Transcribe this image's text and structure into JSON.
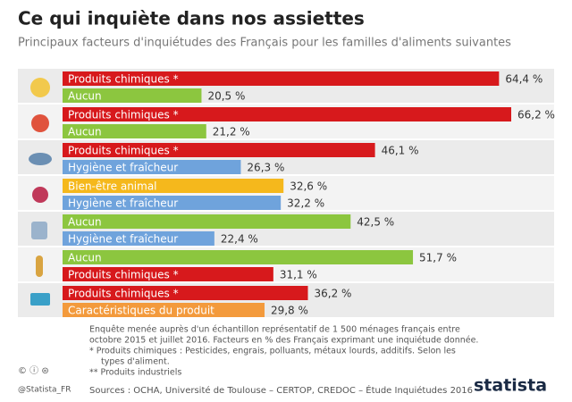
{
  "chart_data": {
    "type": "bar",
    "orientation": "horizontal",
    "title": "Ce qui inquiète dans nos assiettes",
    "subtitle": "Principaux facteurs d'inquiétudes des Français pour les familles d'aliments suivantes",
    "categories": [
      "Produits chimiques *",
      "Aucun",
      "Produits chimiques *",
      "Aucun",
      "Produits chimiques *",
      "Hygiène et fraîcheur",
      "Bien-être animal",
      "Hygiène et fraîcheur",
      "Aucun",
      "Hygiène et fraîcheur",
      "Aucun",
      "Produits chimiques *",
      "Produits chimiques *",
      "Caractéristiques du produit"
    ],
    "values": [
      64.4,
      20.5,
      66.2,
      21.2,
      46.1,
      26.3,
      32.6,
      32.2,
      42.5,
      22.4,
      51.7,
      31.1,
      36.2,
      29.8
    ],
    "value_labels": [
      "64,4 %",
      "20,5 %",
      "66,2 %",
      "21,2 %",
      "46,1 %",
      "26,3 %",
      "32,6 %",
      "32,2 %",
      "42,5 %",
      "22,4 %",
      "51,7 %",
      "31,1 %",
      "36,2 %",
      "29,8 %"
    ],
    "colors": [
      "#d7191c",
      "#8cc63f",
      "#d7191c",
      "#8cc63f",
      "#d7191c",
      "#6fa3dc",
      "#f5b81c",
      "#6fa3dc",
      "#8cc63f",
      "#6fa3dc",
      "#8cc63f",
      "#d7191c",
      "#d7191c",
      "#f39a3c"
    ],
    "footnotes": [
      "Enquête menée auprès d'un échantillon représentatif de 1 500 ménages français entre",
      "octobre 2015 et juillet 2016. Facteurs en % des Français exprimant une inquiétude donnée.",
      "*   Produits chimiques : Pesticides, engrais, polluants, métaux lourds, additifs. Selon les",
      "types d'aliment.",
      "** Produits industriels"
    ],
    "source": "Sources : OCHA, Université de Toulouse – CERTOP, CREDOC – Étude Inquiétudes 2016",
    "credit": "@Statista_FR",
    "brand": "statista"
  }
}
